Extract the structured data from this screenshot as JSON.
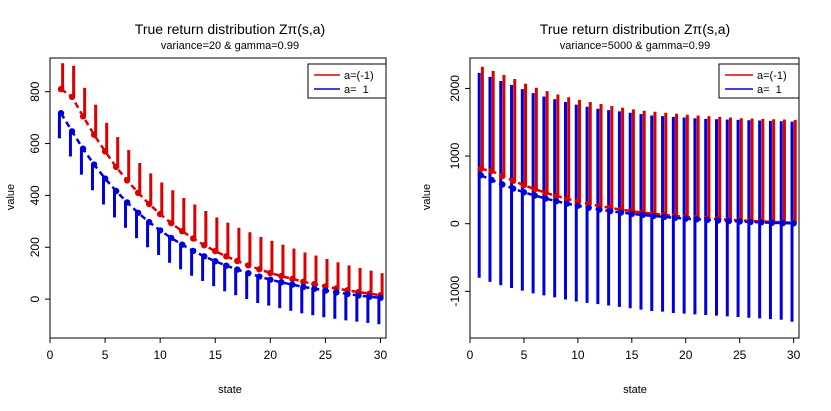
{
  "chart_data": [
    {
      "type": "errorbar",
      "title": "True return distribution Zπ(s,a)",
      "subtitle": "variance=20 & gamma=0.99",
      "xlabel": "state",
      "ylabel": "value",
      "xlim": [
        0,
        30.5
      ],
      "ylim": [
        -150,
        930
      ],
      "x_ticks": [
        0,
        5,
        10,
        15,
        20,
        25,
        30
      ],
      "y_ticks": [
        0,
        200,
        400,
        600,
        800
      ],
      "legend": {
        "position": "top-right",
        "entries": [
          "a=(-1)",
          "a=  1"
        ]
      },
      "x": [
        1,
        2,
        3,
        4,
        5,
        6,
        7,
        8,
        9,
        10,
        11,
        12,
        13,
        14,
        15,
        16,
        17,
        18,
        19,
        20,
        21,
        22,
        23,
        24,
        25,
        26,
        27,
        28,
        29,
        30
      ],
      "series": [
        {
          "name": "a=(-1)",
          "color": "#dd0000",
          "mean": [
            810,
            780,
            705,
            634,
            570,
            510,
            458,
            410,
            367,
            328,
            293,
            262,
            234,
            208,
            185,
            165,
            147,
            130,
            115,
            101,
            89,
            78,
            67,
            58,
            49,
            41,
            34,
            27,
            21,
            15
          ],
          "upper": [
            910,
            900,
            815,
            750,
            680,
            625,
            575,
            525,
            485,
            450,
            420,
            390,
            365,
            340,
            315,
            295,
            275,
            258,
            240,
            225,
            210,
            195,
            180,
            168,
            155,
            142,
            130,
            120,
            110,
            100
          ]
        },
        {
          "name": "a=  1",
          "color": "#0000dd",
          "mean": [
            717,
            647,
            580,
            519,
            465,
            417,
            373,
            333,
            297,
            265,
            236,
            210,
            186,
            165,
            146,
            129,
            114,
            100,
            87,
            75,
            65,
            56,
            47,
            40,
            33,
            26,
            20,
            14,
            9,
            5
          ],
          "lower": [
            620,
            550,
            480,
            420,
            365,
            315,
            275,
            235,
            200,
            170,
            140,
            115,
            90,
            70,
            50,
            30,
            15,
            0,
            -15,
            -25,
            -35,
            -45,
            -55,
            -62,
            -70,
            -76,
            -82,
            -87,
            -92,
            -97
          ]
        }
      ]
    },
    {
      "type": "errorbar",
      "title": "True return distribution Zπ(s,a)",
      "subtitle": "variance=5000 & gamma=0.99",
      "xlabel": "state",
      "ylabel": "value",
      "xlim": [
        0,
        30.5
      ],
      "ylim": [
        -1690,
        2450
      ],
      "x_ticks": [
        0,
        5,
        10,
        15,
        20,
        25,
        30
      ],
      "y_ticks": [
        -1000,
        0,
        1000,
        2000
      ],
      "legend": {
        "position": "top-right",
        "entries": [
          "a=(-1)",
          "a=  1"
        ]
      },
      "x": [
        1,
        2,
        3,
        4,
        5,
        6,
        7,
        8,
        9,
        10,
        11,
        12,
        13,
        14,
        15,
        16,
        17,
        18,
        19,
        20,
        21,
        22,
        23,
        24,
        25,
        26,
        27,
        28,
        29,
        30
      ],
      "series": [
        {
          "name": "a=(-1)",
          "color": "#dd0000",
          "mean": [
            810,
            780,
            705,
            634,
            570,
            510,
            458,
            410,
            367,
            328,
            293,
            262,
            234,
            208,
            185,
            165,
            147,
            130,
            115,
            101,
            89,
            78,
            67,
            58,
            49,
            41,
            34,
            27,
            21,
            15
          ],
          "upper": [
            2320,
            2260,
            2200,
            2140,
            2070,
            2010,
            1960,
            1910,
            1870,
            1830,
            1800,
            1770,
            1740,
            1715,
            1690,
            1670,
            1655,
            1640,
            1625,
            1610,
            1600,
            1590,
            1580,
            1570,
            1560,
            1555,
            1550,
            1545,
            1540,
            1535
          ]
        },
        {
          "name": "a=  1",
          "color": "#0000dd",
          "mean": [
            717,
            647,
            580,
            519,
            465,
            417,
            373,
            333,
            297,
            265,
            236,
            210,
            186,
            165,
            146,
            129,
            114,
            100,
            87,
            75,
            65,
            56,
            47,
            40,
            33,
            26,
            20,
            14,
            9,
            5
          ],
          "upper": [
            2230,
            2170,
            2110,
            2050,
            1990,
            1930,
            1880,
            1840,
            1800,
            1760,
            1730,
            1700,
            1680,
            1660,
            1640,
            1620,
            1600,
            1590,
            1580,
            1570,
            1560,
            1550,
            1545,
            1540,
            1535,
            1530,
            1525,
            1520,
            1515,
            1510
          ],
          "lower": [
            -800,
            -860,
            -910,
            -950,
            -990,
            -1030,
            -1060,
            -1090,
            -1120,
            -1150,
            -1170,
            -1190,
            -1210,
            -1230,
            -1250,
            -1270,
            -1290,
            -1300,
            -1320,
            -1330,
            -1340,
            -1350,
            -1360,
            -1370,
            -1380,
            -1390,
            -1400,
            -1410,
            -1420,
            -1450
          ]
        }
      ]
    }
  ]
}
